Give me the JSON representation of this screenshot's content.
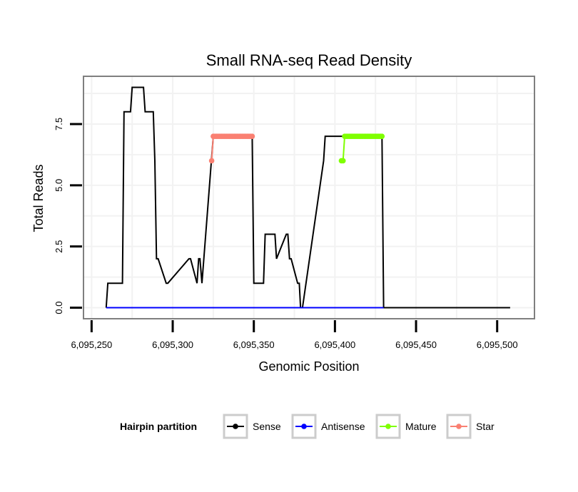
{
  "chart_data": {
    "type": "line",
    "title": "Small RNA-seq Read Density",
    "xlabel": "Genomic Position",
    "ylabel": "Total Reads",
    "xlim": [
      6095245,
      6095523
    ],
    "ylim": [
      -0.45,
      9.45
    ],
    "x_ticks": [
      6095250,
      6095300,
      6095350,
      6095400,
      6095450,
      6095500
    ],
    "x_tick_labels": [
      "6,095,250",
      "6,095,300",
      "6,095,350",
      "6,095,400",
      "6,095,450",
      "6,095,500"
    ],
    "y_ticks": [
      0,
      2.5,
      5,
      7.5
    ],
    "y_tick_labels": [
      "0.0",
      "2.5",
      "5.0",
      "7.5"
    ],
    "grid": true,
    "legend": {
      "title": "Hairpin partition",
      "position": "bottom",
      "entries": [
        {
          "name": "Sense",
          "color": "#000000"
        },
        {
          "name": "Antisense",
          "color": "#0000ff"
        },
        {
          "name": "Mature",
          "color": "#7fff00"
        },
        {
          "name": "Star",
          "color": "#fa8072"
        }
      ]
    },
    "series": [
      {
        "name": "Sense",
        "color": "#000000",
        "style": "line",
        "x": [
          6095259,
          6095260,
          6095269,
          6095270,
          6095274,
          6095275,
          6095282,
          6095283,
          6095288,
          6095289,
          6095290,
          6095291,
          6095296,
          6095297,
          6095310,
          6095311,
          6095315,
          6095316,
          6095316.8,
          6095318,
          6095325,
          6095326,
          6095349,
          6095350,
          6095356,
          6095357,
          6095363,
          6095364,
          6095370,
          6095371,
          6095372,
          6095373,
          6095377,
          6095378,
          6095378.8,
          6095380,
          6095393,
          6095394,
          6095399,
          6095400,
          6095405,
          6095406,
          6095428,
          6095429,
          6095430,
          6095508
        ],
        "y": [
          0,
          1,
          1,
          8,
          8,
          9,
          9,
          8,
          8,
          6,
          2,
          2,
          1,
          1,
          2,
          2,
          1,
          2,
          2,
          1,
          7,
          7,
          7,
          1,
          1,
          3,
          3,
          2,
          3,
          3,
          2,
          2,
          1,
          1,
          0,
          0,
          6,
          7,
          7,
          7,
          7,
          7,
          7,
          7,
          0,
          0
        ]
      },
      {
        "name": "Antisense",
        "color": "#0000ff",
        "style": "line",
        "x": [
          6095259,
          6095430
        ],
        "y": [
          0,
          0
        ]
      },
      {
        "name": "Mature",
        "color": "#7fff00",
        "style": "points",
        "x": [
          6095404,
          6095405,
          6095406,
          6095407,
          6095408,
          6095409,
          6095410,
          6095411,
          6095412,
          6095413,
          6095414,
          6095415,
          6095416,
          6095417,
          6095418,
          6095419,
          6095420,
          6095421,
          6095422,
          6095423,
          6095424,
          6095425,
          6095426,
          6095427,
          6095428,
          6095429
        ],
        "y": [
          6,
          6,
          7,
          7,
          7,
          7,
          7,
          7,
          7,
          7,
          7,
          7,
          7,
          7,
          7,
          7,
          7,
          7,
          7,
          7,
          7,
          7,
          7,
          7,
          7,
          7
        ]
      },
      {
        "name": "Star",
        "color": "#fa8072",
        "style": "points",
        "x": [
          6095324,
          6095325,
          6095326,
          6095327,
          6095328,
          6095329,
          6095330,
          6095331,
          6095332,
          6095333,
          6095334,
          6095335,
          6095336,
          6095337,
          6095338,
          6095339,
          6095340,
          6095341,
          6095342,
          6095343,
          6095344,
          6095345,
          6095346,
          6095347,
          6095348,
          6095349
        ],
        "y": [
          6,
          7,
          7,
          7,
          7,
          7,
          7,
          7,
          7,
          7,
          7,
          7,
          7,
          7,
          7,
          7,
          7,
          7,
          7,
          7,
          7,
          7,
          7,
          7,
          7,
          7
        ]
      }
    ]
  }
}
